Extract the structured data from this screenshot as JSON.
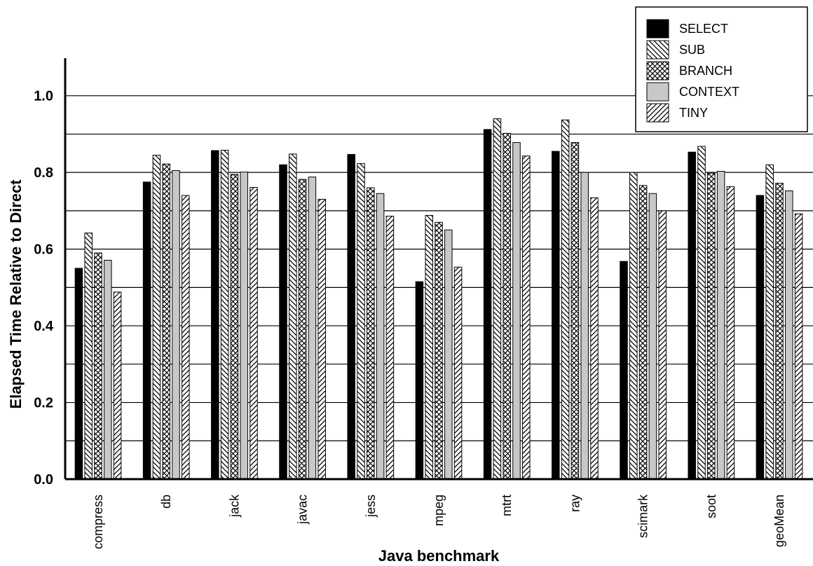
{
  "chart_data": {
    "type": "bar",
    "xlabel": "Java benchmark",
    "ylabel": "Elapsed Time Relative to Direct",
    "ylim": [
      0,
      1.1
    ],
    "yticks": [
      0.0,
      0.2,
      0.4,
      0.6,
      0.8,
      1.0
    ],
    "yticks_labels": [
      "0.0",
      "0.2",
      "0.4",
      "0.6",
      "0.8",
      "1.0"
    ],
    "grid": "horizontal every 0.1",
    "legend_position": "top-right",
    "categories": [
      "compress",
      "db",
      "jack",
      "javac",
      "jess",
      "mpeg",
      "mtrt",
      "ray",
      "scimark",
      "soot",
      "geoMean"
    ],
    "series": [
      {
        "name": "SELECT",
        "pattern": "solid-black",
        "values": [
          0.55,
          0.775,
          0.857,
          0.82,
          0.847,
          0.515,
          0.912,
          0.855,
          0.568,
          0.853,
          0.74
        ]
      },
      {
        "name": "SUB",
        "pattern": "diagonal-back",
        "values": [
          0.642,
          0.845,
          0.858,
          0.848,
          0.823,
          0.688,
          0.94,
          0.937,
          0.8,
          0.868,
          0.82
        ]
      },
      {
        "name": "BRANCH",
        "pattern": "crosshatch",
        "values": [
          0.59,
          0.822,
          0.795,
          0.782,
          0.76,
          0.67,
          0.902,
          0.878,
          0.766,
          0.798,
          0.772
        ]
      },
      {
        "name": "CONTEXT",
        "pattern": "solid-gray",
        "values": [
          0.571,
          0.805,
          0.801,
          0.788,
          0.745,
          0.65,
          0.878,
          0.8,
          0.745,
          0.803,
          0.752
        ]
      },
      {
        "name": "TINY",
        "pattern": "diagonal-forward",
        "values": [
          0.488,
          0.74,
          0.761,
          0.73,
          0.686,
          0.553,
          0.843,
          0.734,
          0.7,
          0.763,
          0.692
        ]
      }
    ]
  }
}
